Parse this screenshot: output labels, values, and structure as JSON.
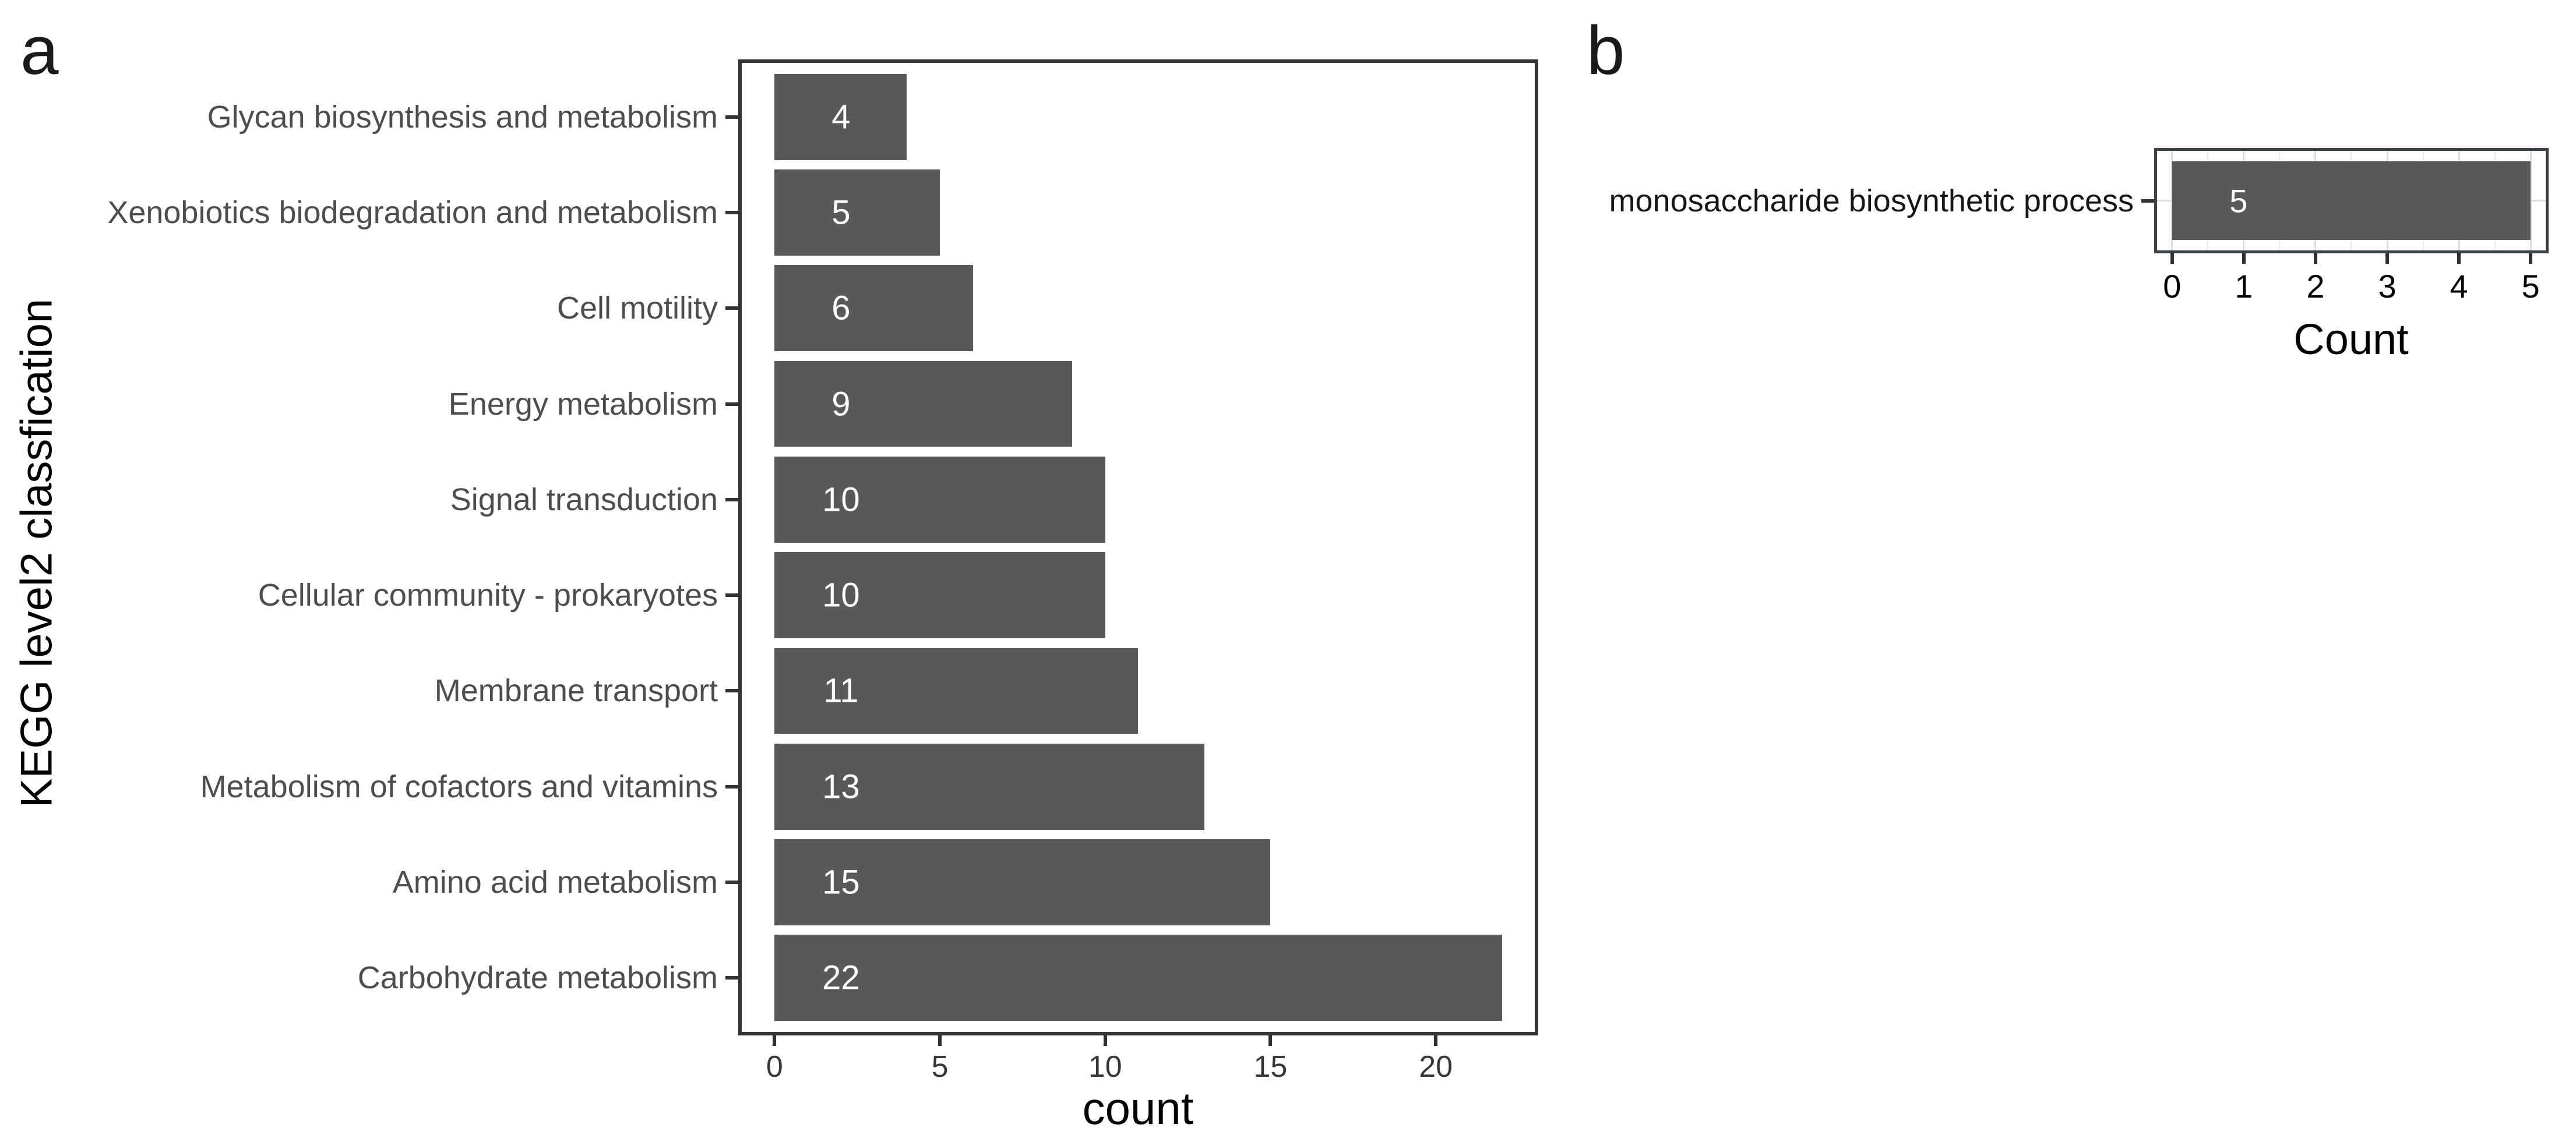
{
  "figure": {
    "background": "#ffffff",
    "panel_a_letter": "a",
    "panel_b_letter": "b"
  },
  "colors": {
    "bar_fill": "#595959",
    "bar_label": "#ffffff",
    "panel_border_a": "#343434",
    "panel_border_b": "#3a4145",
    "category_text_a": "#4d4d4d",
    "category_text_b": "#161616",
    "tick_text_a": "#373737",
    "tick_text_b": "#000000",
    "grid_major": "#dcdcdc",
    "grid_minor": "#ececec"
  },
  "chart_data": [
    {
      "id": "a",
      "panel_label": "a",
      "type": "bar",
      "orientation": "horizontal",
      "categories": [
        "Glycan biosynthesis and metabolism",
        "Xenobiotics biodegradation and metabolism",
        "Cell motility",
        "Energy metabolism",
        "Signal transduction",
        "Cellular community - prokaryotes",
        "Membrane transport",
        "Metabolism of cofactors and vitamins",
        "Amino acid metabolism",
        "Carbohydrate metabolism"
      ],
      "values": [
        4,
        5,
        6,
        9,
        10,
        10,
        11,
        13,
        15,
        22
      ],
      "bar_labels": [
        "4",
        "5",
        "6",
        "9",
        "10",
        "10",
        "11",
        "13",
        "15",
        "22"
      ],
      "xlabel": "count",
      "ylabel": "KEGG level2 classfication",
      "xlim": [
        0,
        22
      ],
      "x_ticks": [
        0,
        5,
        10,
        15,
        20
      ],
      "grid": false,
      "legend_position": "none"
    },
    {
      "id": "b",
      "panel_label": "b",
      "type": "bar",
      "orientation": "horizontal",
      "categories": [
        "monosaccharide biosynthetic process"
      ],
      "values": [
        5
      ],
      "bar_labels": [
        "5"
      ],
      "xlabel": "Count",
      "ylabel": "",
      "xlim": [
        0,
        5
      ],
      "x_ticks": [
        0,
        1,
        2,
        3,
        4,
        5
      ],
      "grid": true,
      "legend_position": "none"
    }
  ]
}
